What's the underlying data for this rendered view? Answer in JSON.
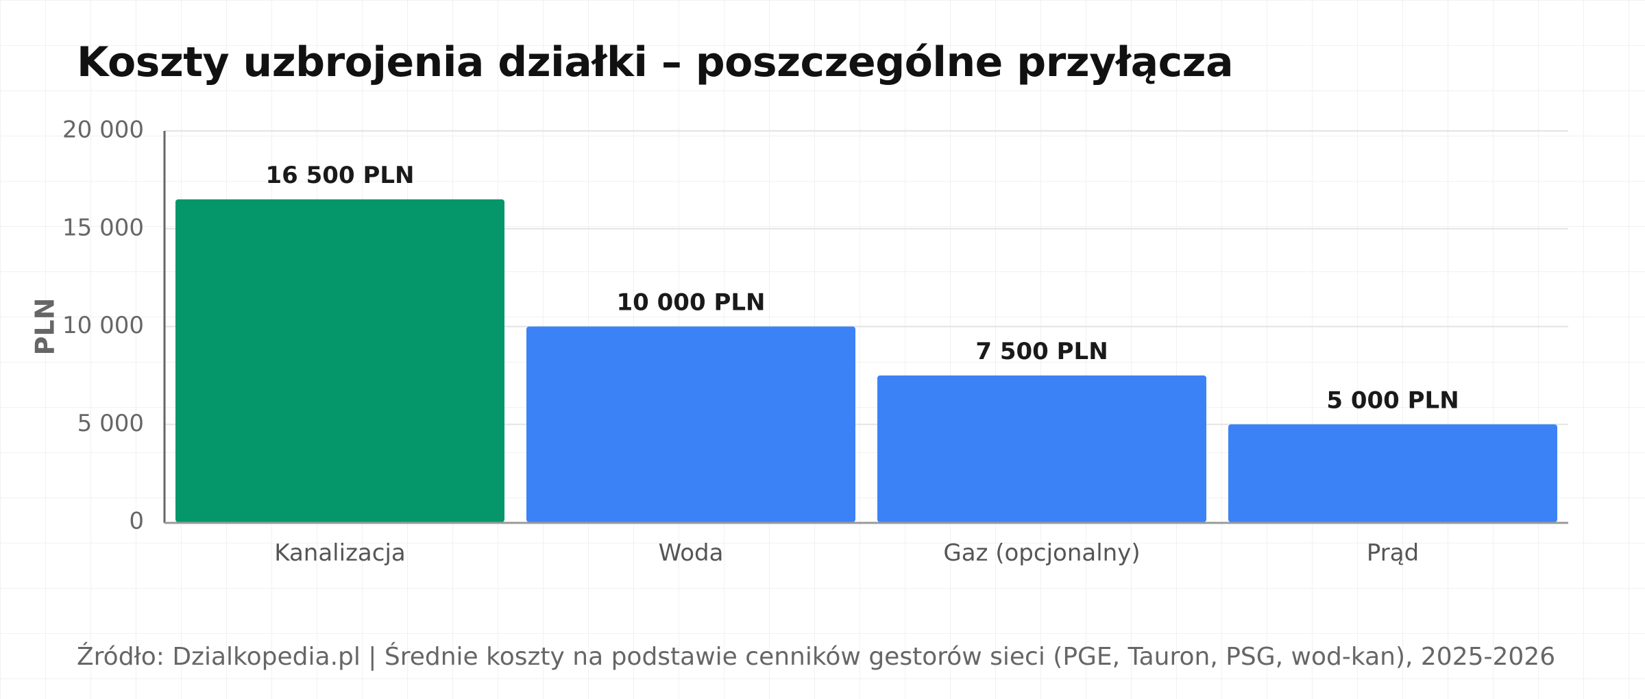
{
  "chart_data": {
    "type": "bar",
    "title": "Koszty uzbrojenia działki – poszczególne przyłącza",
    "ylabel": "PLN",
    "xlabel": "",
    "categories": [
      "Kanalizacja",
      "Woda",
      "Gaz (opcjonalny)",
      "Prąd"
    ],
    "values": [
      16500,
      10000,
      7500,
      5000
    ],
    "data_labels": [
      "16 500 PLN",
      "10 000 PLN",
      "7 500 PLN",
      "5 000 PLN"
    ],
    "bar_colors": [
      "#059669",
      "#3b82f6",
      "#3b82f6",
      "#3b82f6"
    ],
    "ylim": [
      0,
      20000
    ],
    "yticks": [
      0,
      5000,
      10000,
      15000,
      20000
    ],
    "ytick_labels": [
      "0",
      "5 000",
      "10 000",
      "15 000",
      "20 000"
    ],
    "grid": true,
    "legend": "none"
  },
  "footer": {
    "source": "Źródło: Dzialkopedia.pl | Średnie koszty na podstawie cenników gestorów sieci (PGE, Tauron, PSG, wod-kan), 2025-2026"
  }
}
